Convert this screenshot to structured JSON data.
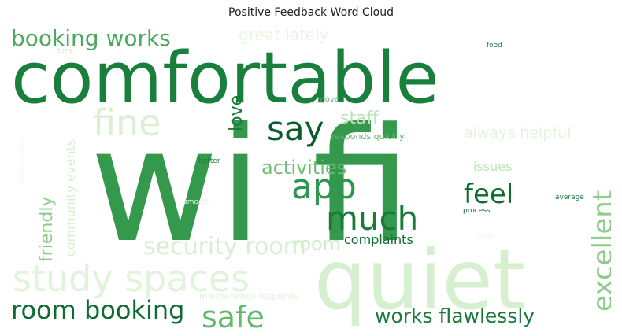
{
  "chart_data": {
    "type": "wordcloud",
    "title": "Positive Feedback Word Cloud",
    "colormap": "Greens",
    "words": [
      {
        "text": "wi fi",
        "weight": 1.0,
        "color": "#34994d"
      },
      {
        "text": "comfortable",
        "weight": 0.62,
        "color": "#187f3c"
      },
      {
        "text": "quiet",
        "weight": 0.6,
        "color": "#d5efcf"
      },
      {
        "text": "study spaces",
        "weight": 0.3,
        "color": "#e0f3db"
      },
      {
        "text": "fine",
        "weight": 0.28,
        "color": "#daf0d4"
      },
      {
        "text": "room booking",
        "weight": 0.22,
        "color": "#0e6b32"
      },
      {
        "text": "app",
        "weight": 0.3,
        "color": "#2f9650"
      },
      {
        "text": "much",
        "weight": 0.3,
        "color": "#1a7a3c"
      },
      {
        "text": "say",
        "weight": 0.3,
        "color": "#0b5d2c"
      },
      {
        "text": "safe",
        "weight": 0.28,
        "color": "#62b86c"
      },
      {
        "text": "excellent",
        "weight": 0.28,
        "color": "#8ecc8a"
      },
      {
        "text": "booking works",
        "weight": 0.2,
        "color": "#4aa85f"
      },
      {
        "text": "security room",
        "weight": 0.22,
        "color": "#d7efd1"
      },
      {
        "text": "feel",
        "weight": 0.24,
        "color": "#0e6b32"
      },
      {
        "text": "works flawlessly",
        "weight": 0.18,
        "color": "#1a7a3c"
      },
      {
        "text": "activities",
        "weight": 0.16,
        "color": "#6dbc72"
      },
      {
        "text": "friendly",
        "weight": 0.16,
        "color": "#8ecc8a"
      },
      {
        "text": "love",
        "weight": 0.16,
        "color": "#1a7a3c"
      },
      {
        "text": "staff",
        "weight": 0.14,
        "color": "#bde3b7"
      },
      {
        "text": "room",
        "weight": 0.16,
        "color": "#d0edc9"
      },
      {
        "text": "complaints",
        "weight": 0.11,
        "color": "#0e6b32"
      },
      {
        "text": "great lately",
        "weight": 0.12,
        "color": "#e8f5e4"
      },
      {
        "text": "always helpful",
        "weight": 0.12,
        "color": "#e3f4df"
      },
      {
        "text": "community events",
        "weight": 0.12,
        "color": "#d7efd1"
      },
      {
        "text": "issues",
        "weight": 0.1,
        "color": "#bde3b7"
      },
      {
        "text": "maintenance responds",
        "weight": 0.07,
        "color": "#dff2da"
      },
      {
        "text": "responds quickly",
        "weight": 0.06,
        "color": "#5fb56b"
      },
      {
        "text": "move",
        "weight": 0.06,
        "color": "#5fb56b"
      },
      {
        "text": "food",
        "weight": 0.05,
        "color": "#2e7d3e"
      },
      {
        "text": "time",
        "weight": 0.05,
        "color": "#d2ecca"
      },
      {
        "text": "better",
        "weight": 0.05,
        "color": "#1a7a3c"
      },
      {
        "text": "average",
        "weight": 0.05,
        "color": "#1a7a3c"
      },
      {
        "text": "process",
        "weight": 0.05,
        "color": "#0e6b32"
      },
      {
        "text": "smooth",
        "weight": 0.05,
        "color": "#e3f4df"
      },
      {
        "text": "clean",
        "weight": 0.05,
        "color": "#eaf6e6"
      },
      {
        "text": "seating special",
        "weight": 0.04,
        "color": "#eef8eb"
      }
    ]
  }
}
